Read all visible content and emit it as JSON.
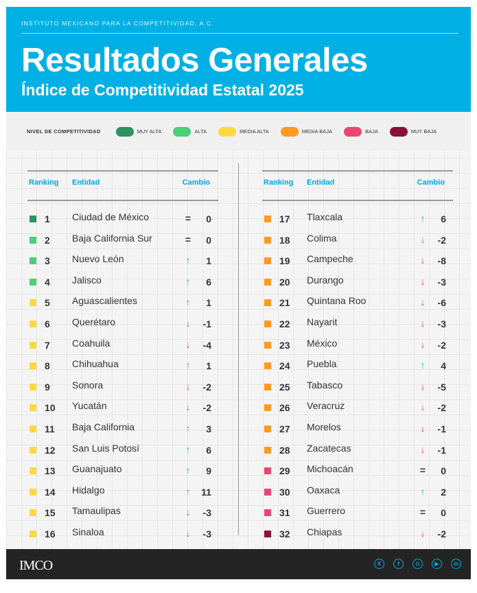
{
  "header": {
    "org": "INSTITUTO MEXICANO PARA LA COMPETITIVIDAD, A.C.",
    "title": "Resultados Generales",
    "subtitle": "Índice de Competitividad Estatal 2025"
  },
  "legend": {
    "label": "NIVEL DE COMPETITIVIDAD",
    "items": [
      {
        "label": "MUY ALTA",
        "color": "#2e9262"
      },
      {
        "label": "ALTA",
        "color": "#4bcf79"
      },
      {
        "label": "MEDIA ALTA",
        "color": "#fcd940"
      },
      {
        "label": "MEDIA BAJA",
        "color": "#fe9a1f"
      },
      {
        "label": "BAJA",
        "color": "#e84772"
      },
      {
        "label": "MUY BAJA",
        "color": "#8a1235"
      }
    ]
  },
  "columns": {
    "ranking": "Ranking",
    "entidad": "Entidad",
    "cambio": "Cambio"
  },
  "rows": [
    {
      "rank": "1",
      "name": "Ciudad de México",
      "dir": "=",
      "change": "0",
      "level": 0
    },
    {
      "rank": "2",
      "name": "Baja California Sur",
      "dir": "=",
      "change": "0",
      "level": 1
    },
    {
      "rank": "3",
      "name": "Nuevo León",
      "dir": "↑",
      "change": "1",
      "level": 1
    },
    {
      "rank": "4",
      "name": "Jalisco",
      "dir": "↑",
      "change": "6",
      "level": 1
    },
    {
      "rank": "5",
      "name": "Aguascalientes",
      "dir": "↑",
      "change": "1",
      "level": 2
    },
    {
      "rank": "6",
      "name": "Querétaro",
      "dir": "↓",
      "change": "-1",
      "level": 2
    },
    {
      "rank": "7",
      "name": "Coahuila",
      "dir": "↓",
      "change": "-4",
      "level": 2
    },
    {
      "rank": "8",
      "name": "Chihuahua",
      "dir": "↑",
      "change": "1",
      "level": 2
    },
    {
      "rank": "9",
      "name": "Sonora",
      "dir": "↓",
      "change": "-2",
      "level": 2
    },
    {
      "rank": "10",
      "name": "Yucatán",
      "dir": "↓",
      "change": "-2",
      "level": 2
    },
    {
      "rank": "11",
      "name": "Baja California",
      "dir": "↑",
      "change": "3",
      "level": 2
    },
    {
      "rank": "12",
      "name": "San Luis Potosí",
      "dir": "↑",
      "change": "6",
      "level": 2
    },
    {
      "rank": "13",
      "name": "Guanajuato",
      "dir": "↑",
      "change": "9",
      "level": 2
    },
    {
      "rank": "14",
      "name": "Hidalgo",
      "dir": "↑",
      "change": "11",
      "level": 2
    },
    {
      "rank": "15",
      "name": "Tamaulipas",
      "dir": "↓",
      "change": "-3",
      "level": 2
    },
    {
      "rank": "16",
      "name": "Sinaloa",
      "dir": "↓",
      "change": "-3",
      "level": 2
    },
    {
      "rank": "17",
      "name": "Tlaxcala",
      "dir": "↑",
      "change": "6",
      "level": 3
    },
    {
      "rank": "18",
      "name": "Colima",
      "dir": "↓",
      "change": "-2",
      "level": 3
    },
    {
      "rank": "19",
      "name": "Campeche",
      "dir": "↓",
      "change": "-8",
      "level": 3
    },
    {
      "rank": "20",
      "name": "Durango",
      "dir": "↓",
      "change": "-3",
      "level": 3
    },
    {
      "rank": "21",
      "name": "Quintana Roo",
      "dir": "↓",
      "change": "-6",
      "level": 3
    },
    {
      "rank": "22",
      "name": "Nayarit",
      "dir": "↓",
      "change": "-3",
      "level": 3
    },
    {
      "rank": "23",
      "name": "México",
      "dir": "↓",
      "change": "-2",
      "level": 3
    },
    {
      "rank": "24",
      "name": "Puebla",
      "dir": "↑",
      "change": "4",
      "level": 3
    },
    {
      "rank": "25",
      "name": "Tabasco",
      "dir": "↓",
      "change": "-5",
      "level": 3
    },
    {
      "rank": "26",
      "name": "Veracruz",
      "dir": "↓",
      "change": "-2",
      "level": 3
    },
    {
      "rank": "27",
      "name": "Morelos",
      "dir": "↓",
      "change": "-1",
      "level": 3
    },
    {
      "rank": "28",
      "name": "Zacatecas",
      "dir": "↓",
      "change": "-1",
      "level": 3
    },
    {
      "rank": "29",
      "name": "Michoacán",
      "dir": "=",
      "change": "0",
      "level": 4
    },
    {
      "rank": "30",
      "name": "Oaxaca",
      "dir": "↑",
      "change": "2",
      "level": 4
    },
    {
      "rank": "31",
      "name": "Guerrero",
      "dir": "=",
      "change": "0",
      "level": 4
    },
    {
      "rank": "32",
      "name": "Chiapas",
      "dir": "↓",
      "change": "-2",
      "level": 5
    }
  ],
  "footer": {
    "logo": "IMCO",
    "social": [
      "x-icon",
      "facebook-icon",
      "instagram-icon",
      "youtube-icon",
      "linkedin-icon"
    ]
  }
}
